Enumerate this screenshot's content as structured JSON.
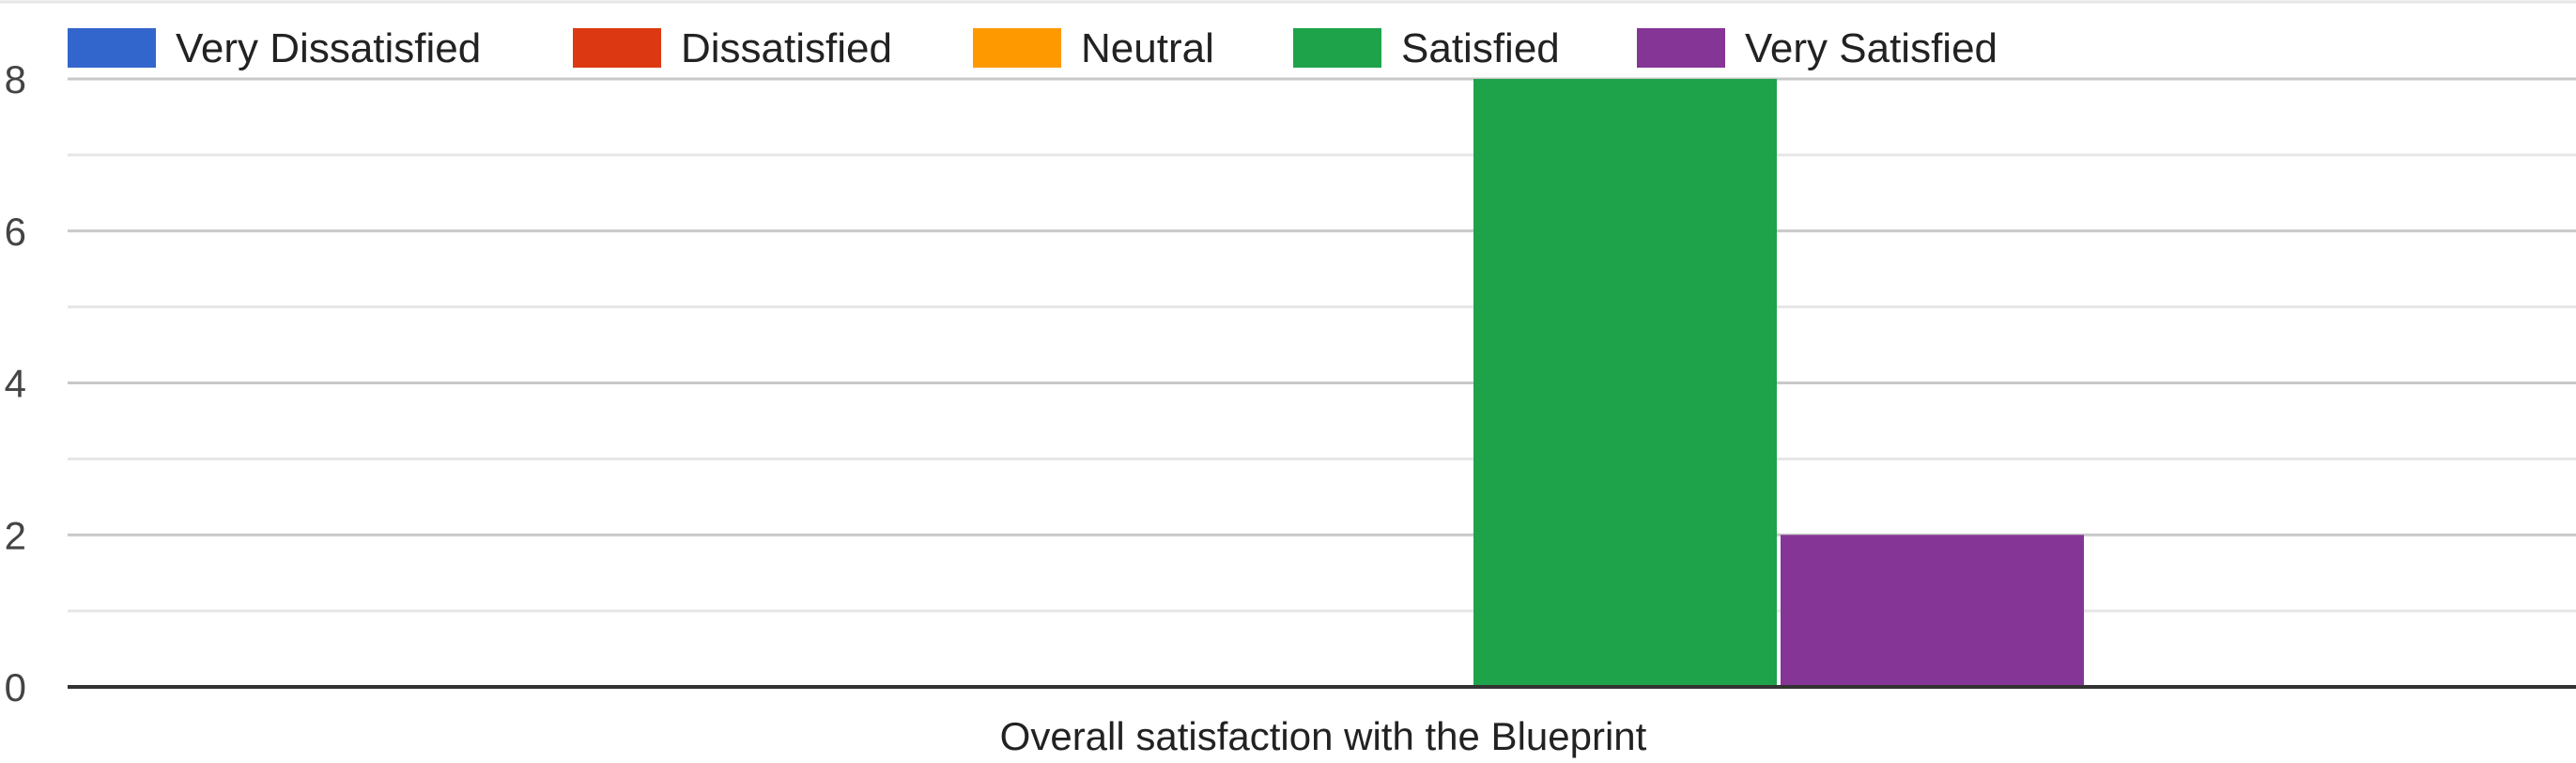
{
  "chart_data": {
    "type": "bar",
    "title": "",
    "xlabel": "",
    "ylabel": "",
    "categories": [
      "Overall satisfaction with the Blueprint"
    ],
    "series": [
      {
        "name": "Very Dissatisfied",
        "color": "#3366cc",
        "values": [
          0
        ]
      },
      {
        "name": "Dissatisfied",
        "color": "#dc3912",
        "values": [
          0
        ]
      },
      {
        "name": "Neutral",
        "color": "#ff9900",
        "values": [
          0
        ]
      },
      {
        "name": "Satisfied",
        "color": "#1ea34a",
        "values": [
          8
        ]
      },
      {
        "name": "Very Satisfied",
        "color": "#853596",
        "values": [
          2
        ]
      }
    ],
    "ylim": [
      0,
      8
    ],
    "yticks": [
      0,
      2,
      4,
      6,
      8
    ],
    "grid": true,
    "legend_position": "top"
  }
}
